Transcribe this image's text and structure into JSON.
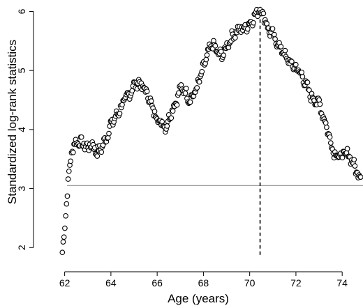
{
  "chart_data": {
    "type": "scatter",
    "xlabel": "Age (years)",
    "ylabel": "Standardized log-rank statistics",
    "xlim": [
      61.8,
      74.9
    ],
    "ylim": [
      1.85,
      6.1
    ],
    "x_ticks": [
      62,
      64,
      66,
      68,
      70,
      72,
      74
    ],
    "y_ticks": [
      2,
      3,
      4,
      5,
      6
    ],
    "x_tick_labels": [
      "62",
      "64",
      "66",
      "68",
      "70",
      "72",
      "74"
    ],
    "y_tick_labels": [
      "2",
      "3",
      "4",
      "5",
      "6"
    ],
    "reference_line_y": 3.05,
    "reference_line_x": 70.45,
    "grid": false,
    "anchors": [
      [
        61.9,
        1.92
      ],
      [
        62.0,
        2.3
      ],
      [
        62.1,
        2.9
      ],
      [
        62.2,
        3.3
      ],
      [
        62.3,
        3.6
      ],
      [
        62.4,
        3.75
      ],
      [
        62.6,
        3.8
      ],
      [
        62.8,
        3.75
      ],
      [
        63.0,
        3.7
      ],
      [
        63.2,
        3.75
      ],
      [
        63.4,
        3.6
      ],
      [
        63.6,
        3.7
      ],
      [
        63.8,
        3.85
      ],
      [
        64.0,
        4.1
      ],
      [
        64.2,
        4.2
      ],
      [
        64.4,
        4.35
      ],
      [
        64.6,
        4.5
      ],
      [
        64.8,
        4.6
      ],
      [
        65.0,
        4.75
      ],
      [
        65.2,
        4.8
      ],
      [
        65.4,
        4.7
      ],
      [
        65.6,
        4.6
      ],
      [
        65.8,
        4.35
      ],
      [
        66.0,
        4.2
      ],
      [
        66.2,
        4.1
      ],
      [
        66.4,
        4.05
      ],
      [
        66.6,
        4.3
      ],
      [
        66.8,
        4.45
      ],
      [
        67.0,
        4.7
      ],
      [
        67.2,
        4.65
      ],
      [
        67.4,
        4.5
      ],
      [
        67.6,
        4.6
      ],
      [
        67.8,
        4.8
      ],
      [
        68.0,
        5.05
      ],
      [
        68.2,
        5.3
      ],
      [
        68.4,
        5.45
      ],
      [
        68.6,
        5.3
      ],
      [
        68.8,
        5.25
      ],
      [
        69.0,
        5.4
      ],
      [
        69.2,
        5.55
      ],
      [
        69.4,
        5.65
      ],
      [
        69.6,
        5.7
      ],
      [
        69.8,
        5.72
      ],
      [
        70.0,
        5.8
      ],
      [
        70.2,
        5.9
      ],
      [
        70.4,
        6.05
      ],
      [
        70.6,
        5.95
      ],
      [
        70.8,
        5.7
      ],
      [
        71.0,
        5.6
      ],
      [
        71.2,
        5.45
      ],
      [
        71.4,
        5.35
      ],
      [
        71.6,
        5.2
      ],
      [
        71.8,
        5.1
      ],
      [
        72.0,
        5.05
      ],
      [
        72.2,
        4.95
      ],
      [
        72.4,
        4.8
      ],
      [
        72.6,
        4.6
      ],
      [
        72.8,
        4.5
      ],
      [
        73.0,
        4.45
      ],
      [
        73.2,
        4.2
      ],
      [
        73.4,
        3.95
      ],
      [
        73.6,
        3.65
      ],
      [
        73.8,
        3.55
      ],
      [
        74.0,
        3.55
      ],
      [
        74.2,
        3.6
      ],
      [
        74.4,
        3.5
      ],
      [
        74.6,
        3.3
      ],
      [
        74.8,
        3.2
      ]
    ],
    "n_points": 360,
    "jitter": 0.07
  }
}
